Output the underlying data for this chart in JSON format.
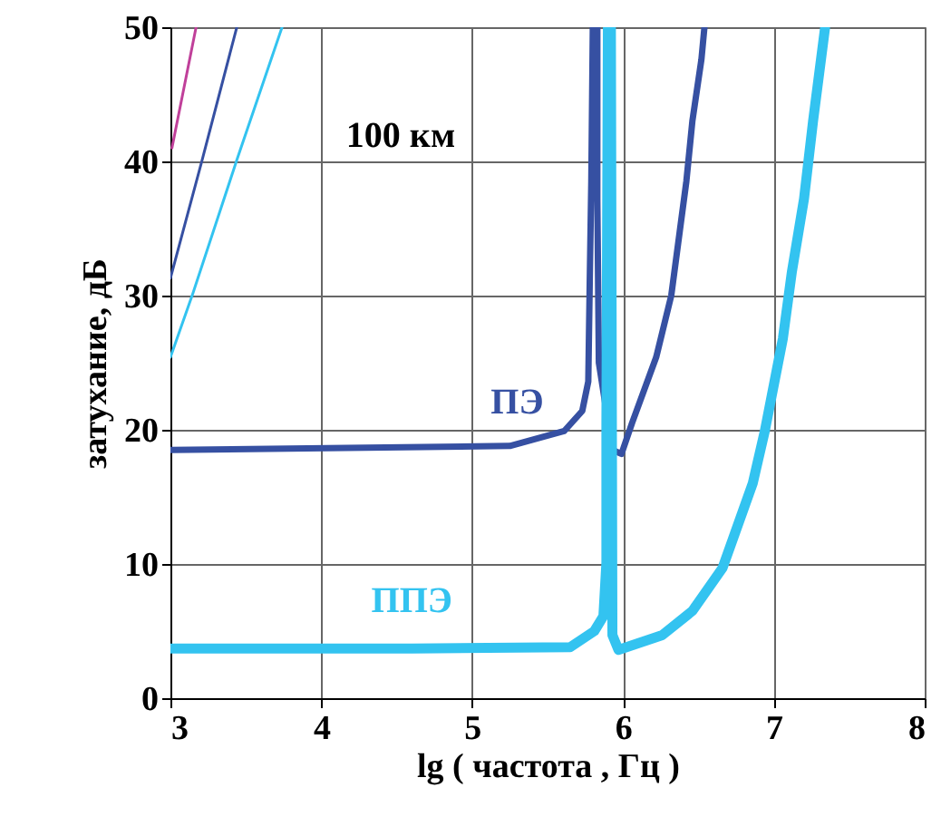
{
  "chart_data": {
    "type": "line",
    "xlabel": "lg ( частота , Гц )",
    "ylabel": "затухание, дБ",
    "xlim": [
      3,
      8
    ],
    "ylim": [
      0,
      50
    ],
    "xticks": [
      3,
      4,
      5,
      6,
      7,
      8
    ],
    "yticks": [
      0,
      10,
      20,
      30,
      40,
      50
    ],
    "grid": true,
    "marker": "none",
    "line_style": "solid",
    "annotations": [
      "100 км"
    ],
    "series": [
      {
        "name": "ПЭ",
        "color": "#3650a2",
        "x": [
          3,
          5.25,
          5.61,
          5.73,
          5.77,
          5.78,
          5.79,
          5.8,
          5.83,
          5.83,
          5.84,
          5.93,
          5.99,
          6.06,
          6.22,
          6.32,
          6.42,
          6.46,
          6.52,
          6.54
        ],
        "values": [
          18.5,
          18.8,
          19.9,
          21.4,
          23.6,
          31.3,
          38.5,
          50,
          50,
          37.2,
          25,
          18.5,
          18.2,
          20.5,
          25.4,
          30,
          38.5,
          43,
          47.6,
          50
        ]
      },
      {
        "name": "ППЭ",
        "color": "#33c3f0",
        "x": [
          3,
          4.6,
          5.65,
          5.81,
          5.87,
          5.89,
          5.89,
          5.9,
          5.92,
          5.93,
          5.97,
          6.26,
          6.46,
          6.66,
          6.86,
          6.94,
          7.06,
          7.12,
          7.2,
          7.26,
          7.34
        ],
        "values": [
          3.7,
          3.7,
          3.8,
          5.0,
          6.1,
          10.1,
          20.5,
          50,
          50,
          4.7,
          3.6,
          4.7,
          6.5,
          9.7,
          16,
          19.9,
          26.8,
          31.8,
          37.2,
          43,
          50
        ]
      },
      {
        "color": "#c0409a",
        "x": [
          3.01,
          3.17
        ],
        "values": [
          41,
          50
        ]
      },
      {
        "color": "#3650a2",
        "x": [
          3.0,
          3.21,
          3.44
        ],
        "values": [
          31.3,
          40.1,
          50
        ]
      },
      {
        "color": "#33c3f0",
        "x": [
          3.0,
          3.15,
          3.44,
          3.74
        ],
        "values": [
          25.4,
          30.2,
          40.1,
          50
        ]
      }
    ]
  }
}
